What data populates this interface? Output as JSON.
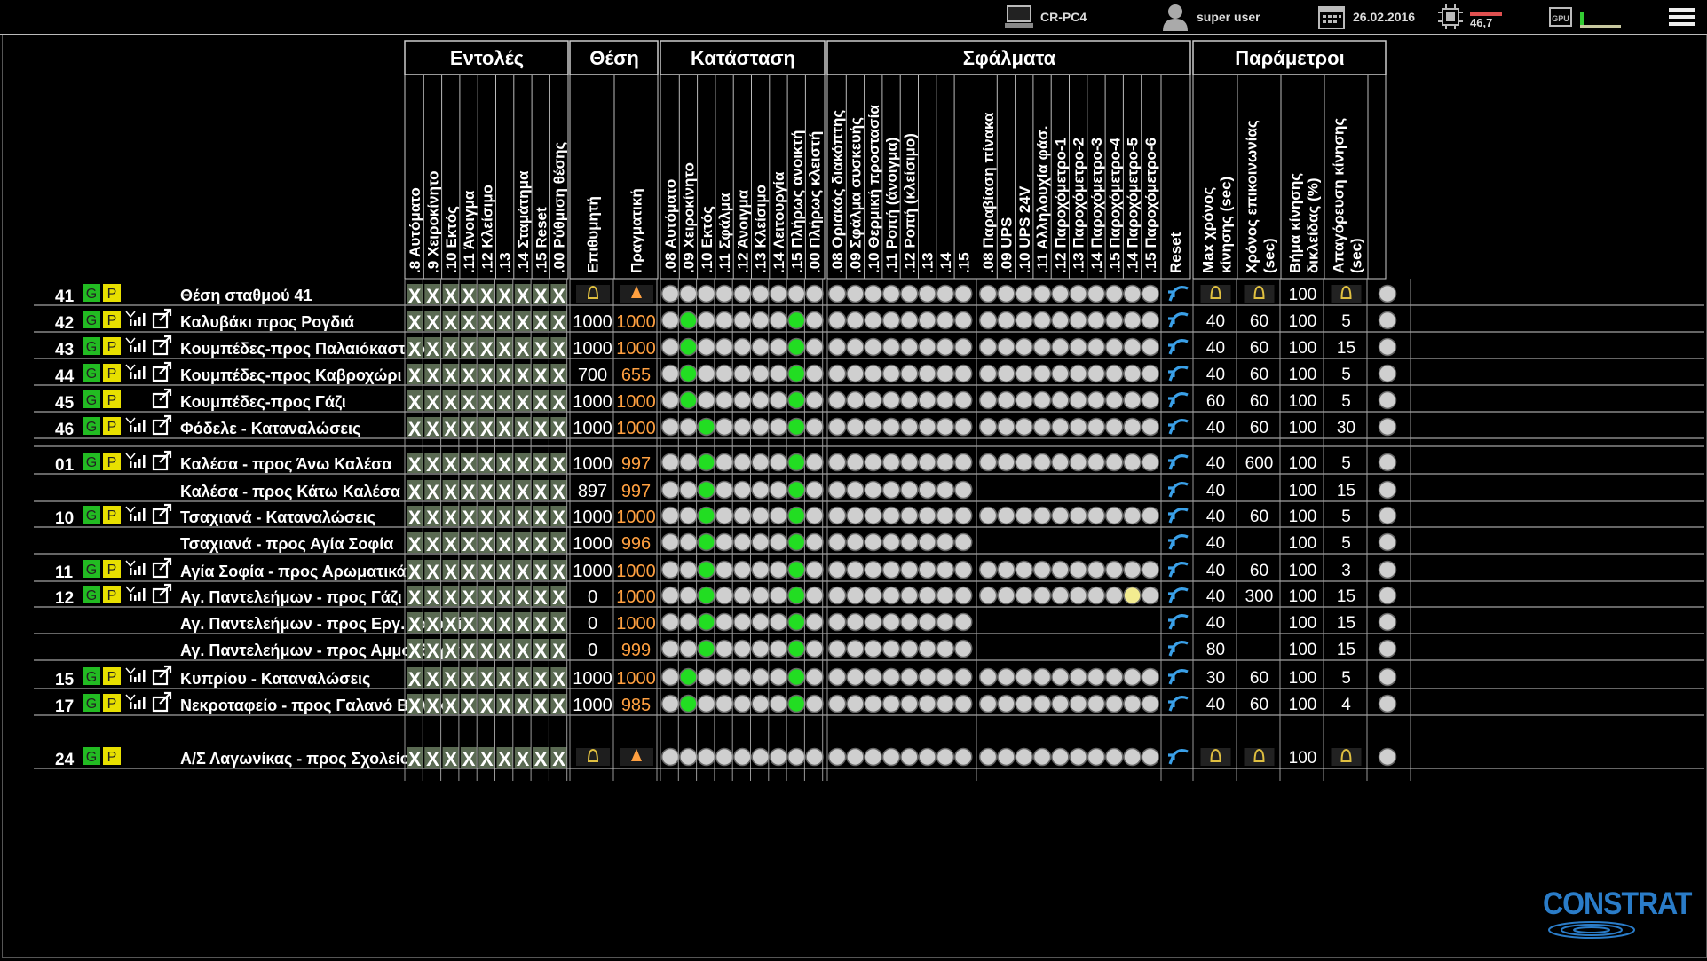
{
  "topbar": {
    "pc_name": "CR-PC4",
    "user": "super user",
    "date": "26.02.2016",
    "cpu_value": "46,7"
  },
  "groups": {
    "commands": "Εντολές",
    "position": "Θέση",
    "status": "Κατάσταση",
    "faults": "Σφάλματα",
    "params": "Παράμετροι"
  },
  "columns": {
    "commands": [
      ".8 Αυτόματο",
      ".9 Χειροκίνητο",
      ".10 Εκτός",
      ".11 Άνοιγμα",
      ".12 Κλείσιμο",
      ".13",
      ".14 Σταμάτημα",
      ".15 Reset",
      ".00 Ρύθμιση θέσης"
    ],
    "position": [
      "Επιθυμητή",
      "Πραγματική"
    ],
    "status": [
      ".08 Αυτόματο",
      ".09 Χειροκίνητο",
      ".10 Εκτός",
      ".11 Σφάλμα",
      ".12 Άνοιγμα",
      ".13 Κλείσιμο",
      ".14 Λειτουργία",
      ".15 Πλήρως ανοικτή",
      ".00 Πλήρως κλειστή"
    ],
    "faults_a": [
      ".08 Οριακός διακόπτης",
      ".09 Σφάλμα συσκευής",
      ".10 Θερμική προστασία",
      ".11 Ροπή (άνοιγμα)",
      ".12 Ροπή (κλείσιμο)",
      ".13",
      ".14",
      ".15"
    ],
    "faults_b": [
      ".08 Παραβίαση πίνακα",
      ".09 UPS",
      ".10 UPS 24V",
      ".11 Αλληλουχία φάσ.",
      ".12 Παροχόμετρο-1",
      ".13 Παροχόμετρο-2",
      ".14 Παροχόμετρο-3",
      ".15 Παροχόμετρο-4",
      ".14 Παροχόμετρο-5",
      ".15 Παροχόμετρο-6"
    ],
    "reset": "Reset",
    "params": [
      "Max χρόνος κίνησης (sec)",
      "Χρόνος επικοινωνίας (sec)",
      "Βήμα κίνησης δικλείδας (%)",
      "Απαγόρευση κίνησης (sec)"
    ]
  },
  "rows": [
    {
      "num": "41",
      "g": "G",
      "p": "P",
      "signal": false,
      "link": false,
      "name": "Θέση σταθμού 41",
      "desired": "",
      "actual": "",
      "warn": true,
      "status_on": [],
      "fb": true,
      "yellow": -1,
      "p1": "",
      "p2": "",
      "p3": "100",
      "p4": "",
      "pwarn": true
    },
    {
      "num": "42",
      "g": "G",
      "p": "P",
      "signal": true,
      "link": true,
      "name": "Καλυβάκι προς Ρογδιά",
      "desired": "1000",
      "actual": "1000",
      "warn": false,
      "status_on": [
        1,
        7
      ],
      "fb": true,
      "yellow": -1,
      "p1": "40",
      "p2": "60",
      "p3": "100",
      "p4": "5",
      "pwarn": false
    },
    {
      "num": "43",
      "g": "G",
      "p": "P",
      "signal": true,
      "link": true,
      "name": "Κουμπέδες-προς Παλαιόκαστρο",
      "desired": "1000",
      "actual": "1000",
      "warn": false,
      "status_on": [
        1,
        7
      ],
      "fb": true,
      "yellow": -1,
      "p1": "40",
      "p2": "60",
      "p3": "100",
      "p4": "15",
      "pwarn": false
    },
    {
      "num": "44",
      "g": "G",
      "p": "P",
      "signal": true,
      "link": true,
      "name": "Κουμπέδες-προς Καβροχώρι",
      "desired": "700",
      "actual": "655",
      "warn": false,
      "status_on": [
        1,
        7
      ],
      "fb": true,
      "yellow": -1,
      "p1": "40",
      "p2": "60",
      "p3": "100",
      "p4": "5",
      "pwarn": false
    },
    {
      "num": "45",
      "g": "G",
      "p": "P",
      "signal": false,
      "link": true,
      "name": "Κουμπέδες-προς Γάζι",
      "desired": "1000",
      "actual": "1000",
      "warn": false,
      "status_on": [
        1,
        7
      ],
      "fb": true,
      "yellow": -1,
      "p1": "60",
      "p2": "60",
      "p3": "100",
      "p4": "5",
      "pwarn": false
    },
    {
      "num": "46",
      "g": "G",
      "p": "P",
      "signal": true,
      "link": true,
      "name": "Φόδελε - Καταναλώσεις",
      "desired": "1000",
      "actual": "1000",
      "warn": false,
      "status_on": [
        2,
        7
      ],
      "fb": true,
      "yellow": -1,
      "p1": "40",
      "p2": "60",
      "p3": "100",
      "p4": "30",
      "pwarn": false
    },
    {
      "num": "01",
      "g": "G",
      "p": "P",
      "signal": true,
      "link": true,
      "name": "Καλέσα - προς Άνω Καλέσα",
      "desired": "1000",
      "actual": "997",
      "warn": false,
      "status_on": [
        2,
        7
      ],
      "fb": true,
      "yellow": -1,
      "p1": "40",
      "p2": "600",
      "p3": "100",
      "p4": "5",
      "pwarn": false
    },
    {
      "num": "",
      "g": "",
      "p": "",
      "signal": false,
      "link": false,
      "name": "Καλέσα - προς Κάτω Καλέσα",
      "desired": "897",
      "actual": "997",
      "warn": false,
      "status_on": [
        2,
        7
      ],
      "fb": false,
      "yellow": -1,
      "p1": "40",
      "p2": "",
      "p3": "100",
      "p4": "15",
      "pwarn": false
    },
    {
      "num": "10",
      "g": "G",
      "p": "P",
      "signal": true,
      "link": true,
      "name": "Τσαχιανά - Καταναλώσεις",
      "desired": "1000",
      "actual": "1000",
      "warn": false,
      "status_on": [
        2,
        7
      ],
      "fb": true,
      "yellow": -1,
      "p1": "40",
      "p2": "60",
      "p3": "100",
      "p4": "5",
      "pwarn": false
    },
    {
      "num": "",
      "g": "",
      "p": "",
      "signal": false,
      "link": false,
      "name": "Τσαχιανά - προς Αγία Σοφία",
      "desired": "1000",
      "actual": "996",
      "warn": false,
      "status_on": [
        2,
        7
      ],
      "fb": false,
      "yellow": -1,
      "p1": "40",
      "p2": "",
      "p3": "100",
      "p4": "5",
      "pwarn": false
    },
    {
      "num": "11",
      "g": "G",
      "p": "P",
      "signal": true,
      "link": true,
      "name": "Αγία Σοφία - προς Αρωματικά",
      "desired": "1000",
      "actual": "1000",
      "warn": false,
      "status_on": [
        2,
        7
      ],
      "fb": true,
      "yellow": -1,
      "p1": "40",
      "p2": "60",
      "p3": "100",
      "p4": "3",
      "pwarn": false
    },
    {
      "num": "12",
      "g": "G",
      "p": "P",
      "signal": true,
      "link": true,
      "name": "Αγ. Παντελεήμων - προς Γάζι",
      "desired": "0",
      "actual": "1000",
      "warn": false,
      "status_on": [
        2,
        7
      ],
      "fb": true,
      "yellow": 8,
      "p1": "40",
      "p2": "300",
      "p3": "100",
      "p4": "15",
      "pwarn": false
    },
    {
      "num": "",
      "g": "",
      "p": "",
      "signal": false,
      "link": false,
      "name": "Αγ. Παντελεήμων - προς Εργ. κατοικίες",
      "desired": "0",
      "actual": "1000",
      "warn": false,
      "status_on": [
        2,
        7
      ],
      "fb": false,
      "yellow": -1,
      "p1": "40",
      "p2": "",
      "p3": "100",
      "p4": "15",
      "pwarn": false
    },
    {
      "num": "",
      "g": "",
      "p": "",
      "signal": false,
      "link": false,
      "name": "Αγ. Παντελεήμων - προς Αμμουδάρα",
      "desired": "0",
      "actual": "999",
      "warn": false,
      "status_on": [
        2,
        7
      ],
      "fb": false,
      "yellow": -1,
      "p1": "80",
      "p2": "",
      "p3": "100",
      "p4": "15",
      "pwarn": false
    },
    {
      "num": "15",
      "g": "G",
      "p": "P",
      "signal": true,
      "link": true,
      "name": "Κυπρίου - Καταναλώσεις",
      "desired": "1000",
      "actual": "1000",
      "warn": false,
      "status_on": [
        1,
        7
      ],
      "fb": true,
      "yellow": -1,
      "p1": "30",
      "p2": "60",
      "p3": "100",
      "p4": "5",
      "pwarn": false
    },
    {
      "num": "17",
      "g": "G",
      "p": "P",
      "signal": true,
      "link": true,
      "name": "Νεκροταφείο - προς Γαλανό Βόλακα",
      "desired": "1000",
      "actual": "985",
      "warn": false,
      "status_on": [
        1,
        7
      ],
      "fb": true,
      "yellow": -1,
      "p1": "40",
      "p2": "60",
      "p3": "100",
      "p4": "4",
      "pwarn": false
    },
    {
      "num": "24",
      "g": "G",
      "p": "P",
      "signal": false,
      "link": false,
      "name": "Α/Σ Λαγωνίκας - προς Σχολείο",
      "desired": "",
      "actual": "",
      "warn": true,
      "status_on": [],
      "fb": true,
      "yellow": -1,
      "p1": "",
      "p2": "",
      "p3": "100",
      "p4": "",
      "pwarn": true
    }
  ],
  "command_mark": "X",
  "logo": "CONSTRAT",
  "colors": {
    "accent_orange": "#ffa040",
    "led_green": "#22dd22",
    "led_yellow": "#f3ec90",
    "reset_blue": "#3aa0e8",
    "gp_green": "#22bb22",
    "gp_yellow": "#e8e000",
    "logo_blue": "#2a7cc8"
  }
}
